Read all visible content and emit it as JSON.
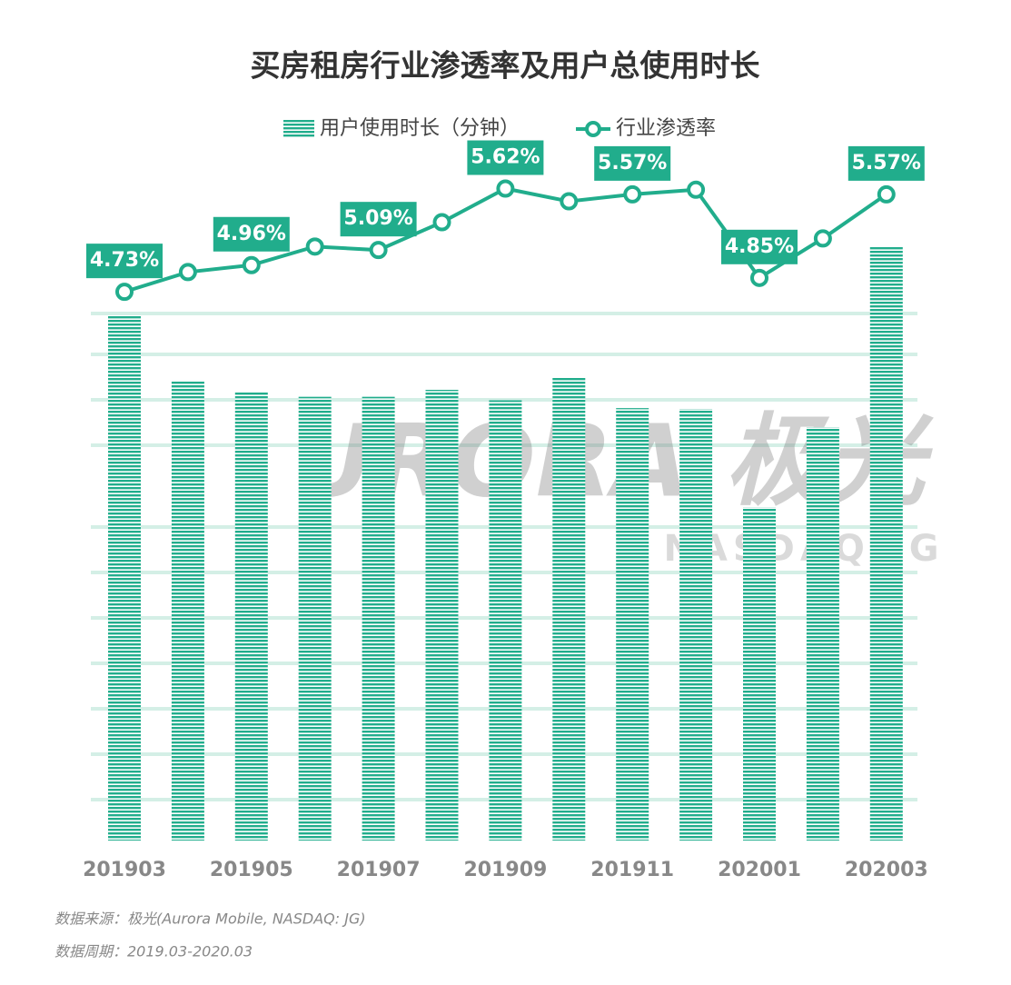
{
  "chart_data": {
    "type": "bar-line",
    "title": "买房租房行业渗透率及用户总使用时长",
    "categories": [
      "201903",
      null,
      "201905",
      null,
      "201907",
      null,
      "201909",
      null,
      "201911",
      null,
      "202001",
      null,
      "202003"
    ],
    "series": [
      {
        "name": "用户使用时长（分钟）",
        "color": "#21ad8c",
        "type": "bar",
        "values": [
          603,
          529,
          515,
          510,
          510,
          518,
          506,
          532,
          497,
          496,
          383,
          475,
          683
        ]
      },
      {
        "name": "行业渗透率",
        "color": "#21ad8c",
        "type": "line",
        "axis": "y2",
        "values": [
          4.73,
          4.9,
          4.96,
          5.12,
          5.09,
          5.33,
          5.62,
          5.51,
          5.57,
          5.61,
          4.85,
          5.19,
          5.57
        ],
        "value_labels": [
          "4.73%",
          null,
          "4.96%",
          null,
          "5.09%",
          null,
          "5.62%",
          null,
          "5.57%",
          null,
          "4.85%",
          null,
          "5.57%"
        ]
      }
    ],
    "ylim": [
      0,
      800
    ],
    "y2lim": [
      0,
      6
    ],
    "watermark": "URORA 极光",
    "watermark_sub": "NASDAQ:JG",
    "source": "数据来源：极光(Aurora Mobile, NASDAQ: JG)",
    "period": "数据周期：2019.03-2020.03"
  }
}
